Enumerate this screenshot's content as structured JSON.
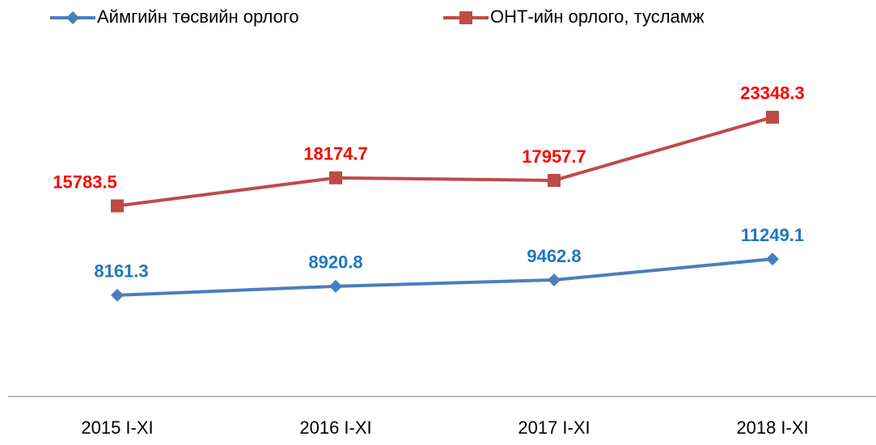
{
  "chart_data": {
    "type": "line",
    "categories": [
      "2015 I-XI",
      "2016 I-XI",
      "2017 I-XI",
      "2018  I-XI"
    ],
    "series": [
      {
        "name": "Аймгийн төсвийн орлого",
        "color": "#4a7ebb",
        "label_color": "#1f78c0",
        "marker": "diamond",
        "values": [
          8161.3,
          8920.8,
          9462.8,
          11249.1
        ]
      },
      {
        "name": "ОНТ-ийн орлого, тусламж",
        "color": "#be4b48",
        "label_color": "#ff0000",
        "marker": "square",
        "values": [
          15783.5,
          18174.7,
          17957.7,
          23348.3
        ]
      }
    ],
    "ylim": [
      0,
      25000
    ],
    "legend": "top"
  }
}
